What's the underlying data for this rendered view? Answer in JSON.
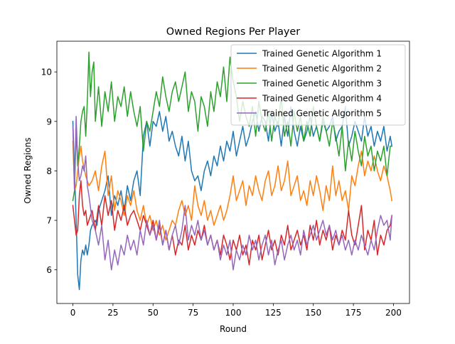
{
  "chart_data": {
    "type": "line",
    "title": "Owned Regions Per Player",
    "xlabel": "Round",
    "ylabel": "Owned Regions",
    "xlim": [
      -10,
      210
    ],
    "ylim": [
      5.32,
      10.62
    ],
    "xticks": [
      0,
      25,
      50,
      75,
      100,
      125,
      150,
      175,
      200
    ],
    "yticks": [
      6,
      7,
      8,
      9,
      10
    ],
    "grid": false,
    "legend_position": "top-right",
    "series": [
      {
        "name": "Trained Genetic Algorithm 1",
        "color": "#1f77b4",
        "x": [
          0,
          2,
          3,
          4,
          5,
          6,
          7,
          8,
          9,
          10,
          11,
          12,
          14,
          15,
          16,
          18,
          20,
          22,
          24,
          26,
          28,
          30,
          32,
          34,
          36,
          38,
          40,
          42,
          44,
          46,
          48,
          50,
          52,
          54,
          56,
          58,
          60,
          62,
          64,
          66,
          68,
          70,
          72,
          74,
          76,
          78,
          80,
          82,
          84,
          86,
          88,
          90,
          92,
          94,
          96,
          98,
          100,
          102,
          104,
          106,
          108,
          110,
          112,
          114,
          116,
          118,
          120,
          122,
          124,
          126,
          128,
          130,
          132,
          134,
          136,
          138,
          140,
          142,
          144,
          146,
          148,
          150,
          152,
          154,
          156,
          158,
          160,
          162,
          164,
          166,
          168,
          170,
          172,
          174,
          176,
          178,
          180,
          182,
          184,
          186,
          188,
          190,
          192,
          194,
          196,
          198,
          199
        ],
        "y": [
          9.0,
          7.0,
          5.9,
          5.6,
          6.2,
          6.4,
          6.3,
          6.5,
          6.3,
          6.5,
          6.8,
          6.9,
          7.0,
          6.9,
          7.2,
          7.4,
          7.6,
          7.9,
          7.1,
          7.5,
          7.3,
          7.6,
          7.2,
          7.7,
          7.4,
          7.8,
          8.0,
          7.5,
          8.7,
          9.0,
          8.5,
          9.0,
          8.9,
          9.2,
          8.8,
          9.1,
          8.6,
          8.8,
          8.5,
          8.3,
          8.7,
          8.2,
          8.6,
          8.0,
          7.8,
          7.9,
          7.6,
          8.0,
          8.2,
          7.9,
          8.3,
          8.1,
          8.5,
          8.2,
          8.6,
          8.4,
          8.8,
          8.3,
          8.6,
          8.9,
          8.5,
          8.7,
          9.0,
          9.2,
          8.8,
          9.1,
          9.0,
          8.6,
          9.2,
          8.8,
          9.0,
          8.5,
          9.1,
          8.7,
          9.3,
          8.8,
          8.5,
          8.9,
          8.6,
          8.8,
          9.1,
          8.7,
          8.9,
          8.6,
          9.0,
          8.8,
          8.9,
          9.1,
          8.6,
          8.8,
          8.9,
          9.3,
          8.5,
          8.7,
          9.0,
          8.8,
          8.6,
          9.1,
          8.7,
          8.9,
          8.5,
          8.8,
          8.6,
          8.9,
          8.4,
          8.7,
          8.5
        ]
      },
      {
        "name": "Trained Genetic Algorithm 2",
        "color": "#ff7f0e",
        "x": [
          0,
          1,
          2,
          3,
          4,
          5,
          6,
          8,
          10,
          12,
          14,
          16,
          18,
          20,
          22,
          24,
          26,
          28,
          30,
          32,
          34,
          36,
          38,
          40,
          42,
          44,
          46,
          48,
          50,
          52,
          54,
          56,
          58,
          60,
          62,
          64,
          66,
          68,
          70,
          72,
          74,
          76,
          78,
          80,
          82,
          84,
          86,
          88,
          90,
          92,
          94,
          96,
          98,
          100,
          102,
          104,
          106,
          108,
          110,
          112,
          114,
          116,
          118,
          120,
          122,
          124,
          126,
          128,
          130,
          132,
          134,
          136,
          138,
          140,
          142,
          144,
          146,
          148,
          150,
          152,
          154,
          156,
          158,
          160,
          162,
          164,
          166,
          168,
          170,
          172,
          174,
          176,
          178,
          180,
          182,
          184,
          186,
          188,
          190,
          192,
          194,
          196,
          198,
          199
        ],
        "y": [
          8.6,
          7.6,
          7.7,
          8.0,
          8.3,
          8.5,
          8.2,
          7.9,
          7.7,
          7.8,
          8.0,
          7.6,
          8.1,
          8.4,
          7.5,
          7.9,
          7.2,
          7.6,
          7.4,
          7.1,
          7.5,
          7.3,
          7.6,
          7.2,
          7.0,
          7.3,
          6.9,
          7.1,
          6.8,
          7.0,
          6.7,
          6.9,
          6.6,
          6.8,
          7.0,
          6.9,
          7.2,
          7.4,
          7.1,
          7.3,
          7.0,
          7.7,
          7.3,
          7.1,
          7.4,
          7.0,
          7.2,
          6.9,
          7.1,
          7.3,
          7.0,
          7.2,
          7.5,
          7.9,
          7.4,
          7.6,
          7.8,
          7.3,
          7.7,
          7.5,
          7.9,
          7.6,
          7.4,
          7.8,
          8.0,
          7.5,
          7.7,
          8.1,
          7.6,
          7.8,
          8.2,
          7.5,
          7.7,
          7.9,
          7.4,
          7.6,
          7.3,
          7.8,
          7.5,
          7.9,
          7.6,
          7.2,
          7.7,
          7.4,
          8.1,
          7.5,
          7.8,
          7.4,
          7.6,
          7.2,
          7.9,
          7.7,
          8.1,
          8.4,
          7.9,
          8.2,
          8.0,
          8.3,
          8.0,
          7.8,
          8.1,
          7.9,
          7.6,
          7.4
        ]
      },
      {
        "name": "Trained Genetic Algorithm 3",
        "color": "#2ca02c",
        "x": [
          0,
          1,
          2,
          3,
          4,
          5,
          6,
          7,
          8,
          9,
          10,
          11,
          12,
          13,
          14,
          16,
          18,
          20,
          22,
          24,
          26,
          28,
          30,
          32,
          34,
          36,
          38,
          40,
          42,
          44,
          46,
          48,
          50,
          52,
          54,
          56,
          58,
          60,
          62,
          64,
          66,
          68,
          70,
          72,
          74,
          76,
          78,
          80,
          82,
          84,
          86,
          88,
          90,
          92,
          94,
          96,
          98,
          100,
          102,
          104,
          106,
          108,
          110,
          112,
          114,
          116,
          118,
          120,
          122,
          124,
          126,
          128,
          130,
          132,
          134,
          136,
          138,
          140,
          142,
          144,
          146,
          148,
          150,
          152,
          154,
          156,
          158,
          160,
          162,
          164,
          166,
          168,
          170,
          172,
          174,
          176,
          178,
          180,
          182,
          184,
          186,
          188,
          190,
          192,
          194,
          196,
          198,
          199
        ],
        "y": [
          7.4,
          7.6,
          8.8,
          8.1,
          8.5,
          9.0,
          9.2,
          9.3,
          8.7,
          9.4,
          10.4,
          9.5,
          10.0,
          10.2,
          9.0,
          9.7,
          8.9,
          9.6,
          9.2,
          9.8,
          9.0,
          9.5,
          9.3,
          9.7,
          9.1,
          9.6,
          9.2,
          8.9,
          9.3,
          8.4,
          9.0,
          8.8,
          9.2,
          9.6,
          9.3,
          9.9,
          9.5,
          9.2,
          9.6,
          9.8,
          9.4,
          9.7,
          10.0,
          9.2,
          9.6,
          9.4,
          8.8,
          9.5,
          9.3,
          8.9,
          9.6,
          9.2,
          9.8,
          9.5,
          10.1,
          9.4,
          10.3,
          9.8,
          9.5,
          9.0,
          9.4,
          9.1,
          8.9,
          9.3,
          8.7,
          9.4,
          9.0,
          8.8,
          9.2,
          8.6,
          9.1,
          8.9,
          9.5,
          8.7,
          9.0,
          8.5,
          9.2,
          8.8,
          9.1,
          8.6,
          9.0,
          8.7,
          9.3,
          8.9,
          8.6,
          9.1,
          8.8,
          8.5,
          9.0,
          8.7,
          8.3,
          8.9,
          8.0,
          8.6,
          8.2,
          8.8,
          8.4,
          8.1,
          8.7,
          8.3,
          8.5,
          8.0,
          8.4,
          8.2,
          8.5,
          7.9,
          8.5,
          8.5
        ]
      },
      {
        "name": "Trained Genetic Algorithm 4",
        "color": "#d62728",
        "x": [
          0,
          1,
          2,
          3,
          4,
          5,
          6,
          7,
          8,
          9,
          10,
          12,
          14,
          16,
          18,
          20,
          22,
          24,
          26,
          28,
          30,
          32,
          34,
          36,
          38,
          40,
          42,
          44,
          46,
          48,
          50,
          52,
          54,
          56,
          58,
          60,
          62,
          64,
          66,
          68,
          70,
          72,
          74,
          76,
          78,
          80,
          82,
          84,
          86,
          88,
          90,
          92,
          94,
          96,
          98,
          100,
          102,
          104,
          106,
          108,
          110,
          112,
          114,
          116,
          118,
          120,
          122,
          124,
          126,
          128,
          130,
          132,
          134,
          136,
          138,
          140,
          142,
          144,
          146,
          148,
          150,
          152,
          154,
          156,
          158,
          160,
          162,
          164,
          166,
          168,
          170,
          172,
          174,
          176,
          178,
          180,
          182,
          184,
          186,
          188,
          190,
          192,
          194,
          196,
          198,
          199
        ],
        "y": [
          7.3,
          7.0,
          6.7,
          6.8,
          7.5,
          7.8,
          7.3,
          7.1,
          7.2,
          6.9,
          7.0,
          7.2,
          6.8,
          7.3,
          6.9,
          7.5,
          7.1,
          7.4,
          6.8,
          7.2,
          7.0,
          7.3,
          6.9,
          7.1,
          7.2,
          7.0,
          6.8,
          7.1,
          6.9,
          6.7,
          7.0,
          6.6,
          6.9,
          6.5,
          6.8,
          6.4,
          6.7,
          6.3,
          6.6,
          6.5,
          6.9,
          6.4,
          6.7,
          6.5,
          6.8,
          6.6,
          6.9,
          6.5,
          6.7,
          6.4,
          6.6,
          6.3,
          6.7,
          6.5,
          6.2,
          6.6,
          6.4,
          6.7,
          6.3,
          6.5,
          6.1,
          6.6,
          6.4,
          6.7,
          6.2,
          6.5,
          6.8,
          6.4,
          6.6,
          6.3,
          6.7,
          6.5,
          6.9,
          6.4,
          6.6,
          6.8,
          6.5,
          6.7,
          6.4,
          6.9,
          6.6,
          7.0,
          6.5,
          6.8,
          6.6,
          6.9,
          6.4,
          6.7,
          6.5,
          6.8,
          6.6,
          7.2,
          6.7,
          6.5,
          6.9,
          7.3,
          6.4,
          6.8,
          6.6,
          7.0,
          6.3,
          6.7,
          6.5,
          6.8,
          6.9,
          7.1
        ]
      },
      {
        "name": "Trained Genetic Algorithm 5",
        "color": "#9467bd",
        "x": [
          0,
          1,
          2,
          3,
          4,
          5,
          6,
          7,
          8,
          9,
          10,
          12,
          14,
          16,
          18,
          20,
          22,
          24,
          26,
          28,
          30,
          32,
          34,
          36,
          38,
          40,
          42,
          44,
          46,
          48,
          50,
          52,
          54,
          56,
          58,
          60,
          62,
          64,
          66,
          68,
          70,
          72,
          74,
          76,
          78,
          80,
          82,
          84,
          86,
          88,
          90,
          92,
          94,
          96,
          98,
          100,
          102,
          104,
          106,
          108,
          110,
          112,
          114,
          116,
          118,
          120,
          122,
          124,
          126,
          128,
          130,
          132,
          134,
          136,
          138,
          140,
          142,
          144,
          146,
          148,
          150,
          152,
          154,
          156,
          158,
          160,
          162,
          164,
          166,
          168,
          170,
          172,
          174,
          176,
          178,
          180,
          182,
          184,
          186,
          188,
          190,
          192,
          194,
          196,
          198,
          199
        ],
        "y": [
          8.9,
          7.6,
          9.1,
          8.2,
          7.8,
          7.9,
          8.1,
          8.0,
          8.3,
          7.7,
          7.5,
          7.0,
          6.8,
          6.5,
          6.9,
          6.2,
          6.6,
          6.0,
          6.4,
          6.1,
          6.5,
          6.3,
          6.7,
          6.4,
          6.6,
          6.3,
          6.8,
          6.5,
          7.0,
          6.7,
          6.9,
          6.6,
          7.0,
          6.5,
          6.8,
          6.4,
          6.7,
          6.9,
          6.5,
          6.8,
          7.3,
          6.6,
          6.9,
          6.7,
          7.0,
          6.6,
          6.8,
          6.5,
          6.7,
          6.4,
          6.6,
          6.2,
          6.5,
          6.3,
          6.6,
          6.0,
          6.4,
          6.2,
          6.5,
          6.3,
          6.7,
          6.4,
          6.6,
          6.2,
          6.5,
          6.7,
          6.3,
          6.6,
          6.1,
          6.4,
          6.6,
          6.2,
          6.5,
          6.7,
          6.4,
          6.6,
          6.3,
          6.8,
          6.5,
          6.7,
          6.9,
          6.6,
          6.8,
          7.0,
          6.7,
          6.9,
          6.6,
          6.8,
          6.5,
          6.7,
          6.4,
          6.6,
          6.3,
          6.6,
          6.4,
          6.7,
          6.5,
          6.3,
          6.6,
          6.4,
          6.8,
          7.1,
          6.9,
          7.0,
          6.6,
          7.1
        ]
      }
    ]
  }
}
